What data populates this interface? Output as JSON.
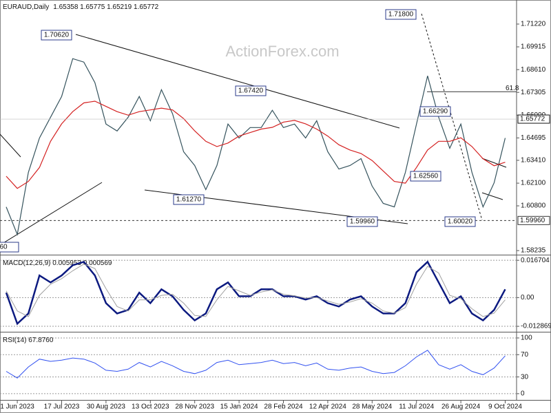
{
  "chart_data": [
    {
      "type": "line",
      "title": "EURAUD,Daily",
      "subtitle": "1.65358 1.65775 1.65219 1.65772",
      "watermark": "ActionForex.com",
      "ylim": [
        1.58,
        1.726
      ],
      "yticks": [
        {
          "value": 1.7122,
          "label": "1.71220"
        },
        {
          "value": 1.69915,
          "label": "1.69915"
        },
        {
          "value": 1.6861,
          "label": "1.68610"
        },
        {
          "value": 1.67305,
          "label": "1.67305"
        },
        {
          "value": 1.66,
          "label": "1.66000"
        },
        {
          "value": 1.64695,
          "label": "1.64695"
        },
        {
          "value": 1.6341,
          "label": "1.63410"
        },
        {
          "value": 1.621,
          "label": "1.62100"
        },
        {
          "value": 1.608,
          "label": "1.60800"
        },
        {
          "value": 1.58235,
          "label": "1.58235"
        }
      ],
      "series": [
        {
          "color": "#34525c",
          "values": [
            1.6074,
            1.5916,
            1.6272,
            1.6469,
            1.6588,
            1.6707,
            1.6924,
            1.6904,
            1.6786,
            1.6549,
            1.6509,
            1.6588,
            1.6707,
            1.6568,
            1.6746,
            1.6608,
            1.639,
            1.6311,
            1.6173,
            1.6311,
            1.6549,
            1.6469,
            1.6529,
            1.6529,
            1.6628,
            1.6529,
            1.6549,
            1.6469,
            1.6568,
            1.639,
            1.6291,
            1.6311,
            1.6351,
            1.6193,
            1.6094,
            1.6074,
            1.6272,
            1.6549,
            1.6825,
            1.6588,
            1.641,
            1.6549,
            1.6272,
            1.6074,
            1.6212,
            1.6469
          ]
        },
        {
          "color": "#d42020",
          "values": [
            1.625,
            1.618,
            1.622,
            1.63,
            1.645,
            1.655,
            1.662,
            1.667,
            1.668,
            1.665,
            1.662,
            1.66,
            1.662,
            1.663,
            1.664,
            1.663,
            1.658,
            1.651,
            1.645,
            1.642,
            1.644,
            1.648,
            1.65,
            1.652,
            1.653,
            1.656,
            1.657,
            1.655,
            1.652,
            1.648,
            1.643,
            1.64,
            1.638,
            1.634,
            1.628,
            1.622,
            1.621,
            1.63,
            1.64,
            1.645,
            1.645,
            1.647,
            1.642,
            1.635,
            1.631,
            1.633
          ]
        }
      ],
      "annotations": [
        "1.70620",
        "1.71800",
        "1.67420",
        "1.66290",
        "1.62560",
        "1.61270",
        "1.59960",
        "1.60020",
        "60"
      ],
      "hline": {
        "value": 1.5996,
        "label": "1.59960"
      },
      "fib_level": {
        "value": 1.6734,
        "label": "61.8"
      },
      "last": 1.65772
    },
    {
      "type": "line",
      "title": "MACD(12,26,9) 0.005953 0.000569",
      "ylim": [
        -0.0147,
        0.0186
      ],
      "grid": true,
      "yticks": [
        0.016704,
        {
          "value": 0,
          "label": "0.00"
        },
        -0.012869
      ],
      "series": [
        {
          "color": "#0c1a80",
          "width": 2.5,
          "values": [
            0.0022,
            -0.0117,
            -0.0071,
            0.0099,
            0.0068,
            0.0099,
            0.0145,
            0.016,
            0.0099,
            -0.0025,
            -0.0071,
            -0.0055,
            0.0022,
            -0.0025,
            0.0037,
            0.0006,
            -0.0055,
            -0.0102,
            -0.0071,
            0.0037,
            0.0068,
            0.0006,
            0.0006,
            0.0037,
            0.0037,
            0.0006,
            0.0006,
            -0.0009,
            0.0006,
            -0.0025,
            -0.004,
            -0.0009,
            0.0006,
            -0.004,
            -0.0071,
            -0.0071,
            -0.0025,
            0.0114,
            0.016,
            0.0068,
            -0.0025,
            0.0006,
            -0.0071,
            -0.0102,
            -0.0055,
            0.0037
          ]
        },
        {
          "color": "#a0a0a0",
          "width": 1,
          "values": [
            0.003,
            -0.006,
            -0.0085,
            0.001,
            0.006,
            0.0085,
            0.012,
            0.015,
            0.013,
            0.004,
            -0.004,
            -0.006,
            -0.001,
            -0.001,
            0.001,
            0.0015,
            -0.0025,
            -0.008,
            -0.0085,
            -0.001,
            0.005,
            0.003,
            0.001,
            0.0025,
            0.0035,
            0.0015,
            0.0008,
            -0.0002,
            0,
            -0.0015,
            -0.003,
            -0.002,
            -0.0005,
            -0.0025,
            -0.006,
            -0.007,
            -0.0045,
            0.006,
            0.014,
            0.011,
            0.001,
            -0.0005,
            -0.005,
            -0.0085,
            -0.007,
            -0.001
          ]
        }
      ]
    },
    {
      "type": "line",
      "title": "RSI(14) 67.8760",
      "ylim": [
        -10,
        108.6
      ],
      "grid": true,
      "yticks": [
        100,
        70,
        30,
        0
      ],
      "categories": [
        null,
        "1 Jun 2023",
        null,
        null,
        null,
        "17 Jul 2023",
        null,
        null,
        null,
        "30 Aug 2023",
        null,
        null,
        null,
        "13 Oct 2023",
        null,
        null,
        null,
        "28 Nov 2023",
        null,
        null,
        null,
        "15 Jan 2024",
        null,
        null,
        null,
        "28 Feb 2024",
        null,
        null,
        null,
        "12 Apr 2024",
        null,
        null,
        null,
        "28 May 2024",
        null,
        null,
        null,
        "11 Jul 2024",
        null,
        null,
        null,
        "26 Aug 2024",
        null,
        null,
        null,
        "9 Oct 2024"
      ],
      "series": [
        {
          "color": "#3050f0",
          "width": 1,
          "values": [
            40,
            28,
            48,
            62,
            58,
            60,
            64,
            62,
            55,
            42,
            40,
            44,
            56,
            48,
            58,
            50,
            40,
            36,
            42,
            56,
            60,
            52,
            54,
            56,
            60,
            54,
            56,
            50,
            55,
            44,
            42,
            46,
            48,
            40,
            36,
            38,
            50,
            66,
            78,
            52,
            44,
            52,
            40,
            34,
            46,
            68
          ]
        }
      ]
    }
  ]
}
